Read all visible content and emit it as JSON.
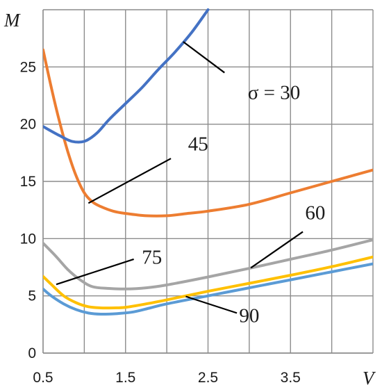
{
  "chart_data": {
    "type": "line",
    "xlabel": "V",
    "ylabel": "M",
    "xlim": [
      0.5,
      4.5
    ],
    "ylim": [
      0,
      30
    ],
    "xticks": [
      "0.5",
      "1.5",
      "2.5",
      "3.5"
    ],
    "yticks": [
      "0",
      "5",
      "10",
      "15",
      "20",
      "25"
    ],
    "grid": true,
    "series": [
      {
        "name": "σ = 30",
        "color": "#4472C4",
        "points": [
          [
            0.5,
            19.8
          ],
          [
            0.7,
            19.0
          ],
          [
            0.85,
            18.5
          ],
          [
            1.0,
            18.5
          ],
          [
            1.15,
            19.2
          ],
          [
            1.3,
            20.4
          ],
          [
            1.5,
            21.8
          ],
          [
            1.7,
            23.2
          ],
          [
            1.9,
            24.8
          ],
          [
            2.1,
            26.3
          ],
          [
            2.3,
            28.0
          ],
          [
            2.5,
            30.0
          ]
        ]
      },
      {
        "name": "45",
        "color": "#ED7D31",
        "points": [
          [
            0.5,
            26.5
          ],
          [
            0.6,
            23.2
          ],
          [
            0.7,
            20.2
          ],
          [
            0.8,
            17.6
          ],
          [
            0.9,
            15.5
          ],
          [
            1.0,
            14.0
          ],
          [
            1.1,
            13.2
          ],
          [
            1.2,
            12.8
          ],
          [
            1.35,
            12.4
          ],
          [
            1.5,
            12.2
          ],
          [
            1.75,
            12.0
          ],
          [
            2.0,
            12.0
          ],
          [
            2.25,
            12.2
          ],
          [
            2.5,
            12.4
          ],
          [
            3.0,
            13.0
          ],
          [
            3.5,
            14.0
          ],
          [
            4.0,
            15.0
          ],
          [
            4.5,
            16.0
          ]
        ]
      },
      {
        "name": "60",
        "color": "#A5A5A5",
        "points": [
          [
            0.5,
            9.6
          ],
          [
            0.65,
            8.5
          ],
          [
            0.8,
            7.3
          ],
          [
            0.95,
            6.4
          ],
          [
            1.1,
            5.8
          ],
          [
            1.3,
            5.65
          ],
          [
            1.5,
            5.6
          ],
          [
            1.75,
            5.7
          ],
          [
            2.0,
            5.95
          ],
          [
            2.5,
            6.65
          ],
          [
            3.0,
            7.4
          ],
          [
            3.5,
            8.2
          ],
          [
            4.0,
            9.0
          ],
          [
            4.5,
            9.9
          ]
        ]
      },
      {
        "name": "75",
        "color": "#FFC000",
        "points": [
          [
            0.5,
            6.7
          ],
          [
            0.6,
            6.0
          ],
          [
            0.75,
            5.0
          ],
          [
            0.9,
            4.4
          ],
          [
            1.05,
            4.05
          ],
          [
            1.2,
            3.95
          ],
          [
            1.35,
            3.95
          ],
          [
            1.5,
            4.0
          ],
          [
            1.75,
            4.3
          ],
          [
            2.0,
            4.65
          ],
          [
            2.5,
            5.4
          ],
          [
            3.0,
            6.1
          ],
          [
            3.5,
            6.8
          ],
          [
            4.0,
            7.55
          ],
          [
            4.5,
            8.4
          ]
        ]
      },
      {
        "name": "90",
        "color": "#5B9BD5",
        "points": [
          [
            0.5,
            5.6
          ],
          [
            0.6,
            5.0
          ],
          [
            0.75,
            4.3
          ],
          [
            0.9,
            3.8
          ],
          [
            1.05,
            3.5
          ],
          [
            1.2,
            3.4
          ],
          [
            1.4,
            3.45
          ],
          [
            1.6,
            3.6
          ],
          [
            1.8,
            3.95
          ],
          [
            2.0,
            4.3
          ],
          [
            2.5,
            5.0
          ],
          [
            3.0,
            5.7
          ],
          [
            3.5,
            6.4
          ],
          [
            4.0,
            7.1
          ],
          [
            4.5,
            7.8
          ]
        ]
      }
    ],
    "annotations": [
      {
        "text": "σ = 30",
        "text_at": [
          3.3,
          22.2
        ],
        "arrow_from": [
          2.7,
          24.5
        ],
        "arrow_to": [
          2.2,
          27.2
        ]
      },
      {
        "text": "45",
        "text_at": [
          2.38,
          17.7
        ],
        "arrow_from": [
          2.05,
          17.0
        ],
        "arrow_to": [
          1.05,
          13.1
        ]
      },
      {
        "text": "60",
        "text_at": [
          3.8,
          11.7
        ],
        "arrow_from": [
          3.65,
          10.6
        ],
        "arrow_to": [
          3.02,
          7.45
        ]
      },
      {
        "text": "75",
        "text_at": [
          1.82,
          7.8
        ],
        "arrow_from": [
          1.6,
          8.2
        ],
        "arrow_to": [
          0.66,
          6.0
        ]
      },
      {
        "text": "90",
        "text_at": [
          3.0,
          2.7
        ],
        "arrow_from": [
          2.85,
          3.5
        ],
        "arrow_to": [
          2.23,
          4.95
        ]
      }
    ]
  }
}
